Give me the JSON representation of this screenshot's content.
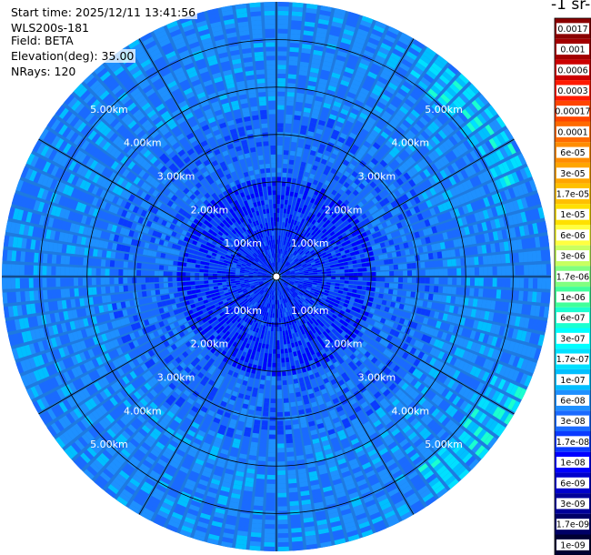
{
  "header": {
    "start_time": "Start time: 2025/12/11 13:41:56",
    "instrument": "WLS200s-181",
    "field": "Field: BETA",
    "elevation": "Elevation(deg): 35.00",
    "nrays": "NRays: 120"
  },
  "colorbar": {
    "title": "-1 sr-",
    "labels": [
      "0.0017",
      "0.001",
      "0.0006",
      "0.0003",
      "0.00017",
      "0.0001",
      "6e-05",
      "3e-05",
      "1.7e-05",
      "1e-05",
      "6e-06",
      "3e-06",
      "1.7e-06",
      "1e-06",
      "6e-07",
      "3e-07",
      "1.7e-07",
      "1e-07",
      "6e-08",
      "3e-08",
      "1.7e-08",
      "1e-08",
      "6e-09",
      "3e-09",
      "1.7e-09",
      "1e-09"
    ],
    "colors": [
      "#8b0000",
      "#a30000",
      "#cc0000",
      "#ff1a00",
      "#ff4500",
      "#ff6a00",
      "#ff8c00",
      "#ffa500",
      "#ffc000",
      "#ffe000",
      "#ffff40",
      "#c8ff60",
      "#80ff80",
      "#40ff9a",
      "#1affd0",
      "#00ffff",
      "#00e0ff",
      "#00bfff",
      "#1e90ff",
      "#1a6aff",
      "#0a3aff",
      "#0000ff",
      "#0000cc",
      "#000099",
      "#000066",
      "#000033"
    ]
  },
  "chart_data": {
    "type": "heatmap",
    "title": "",
    "field": "BETA",
    "elevation_deg": 35.0,
    "nrays": 120,
    "range_rings_km": [
      1.0,
      2.0,
      3.0,
      4.0,
      5.0
    ],
    "ring_labels": [
      "1.00km",
      "2.00km",
      "3.00km",
      "4.00km",
      "5.00km"
    ],
    "max_range_km": 5.8,
    "spokes_deg": [
      0,
      30,
      60,
      90,
      120,
      150,
      180,
      210,
      240,
      270,
      300,
      330
    ],
    "dominant_color": "#1a6aff",
    "note_colors": {
      "near": "#0000ff",
      "far": "#1e90ff",
      "edge_high": "#40ff9a"
    }
  }
}
